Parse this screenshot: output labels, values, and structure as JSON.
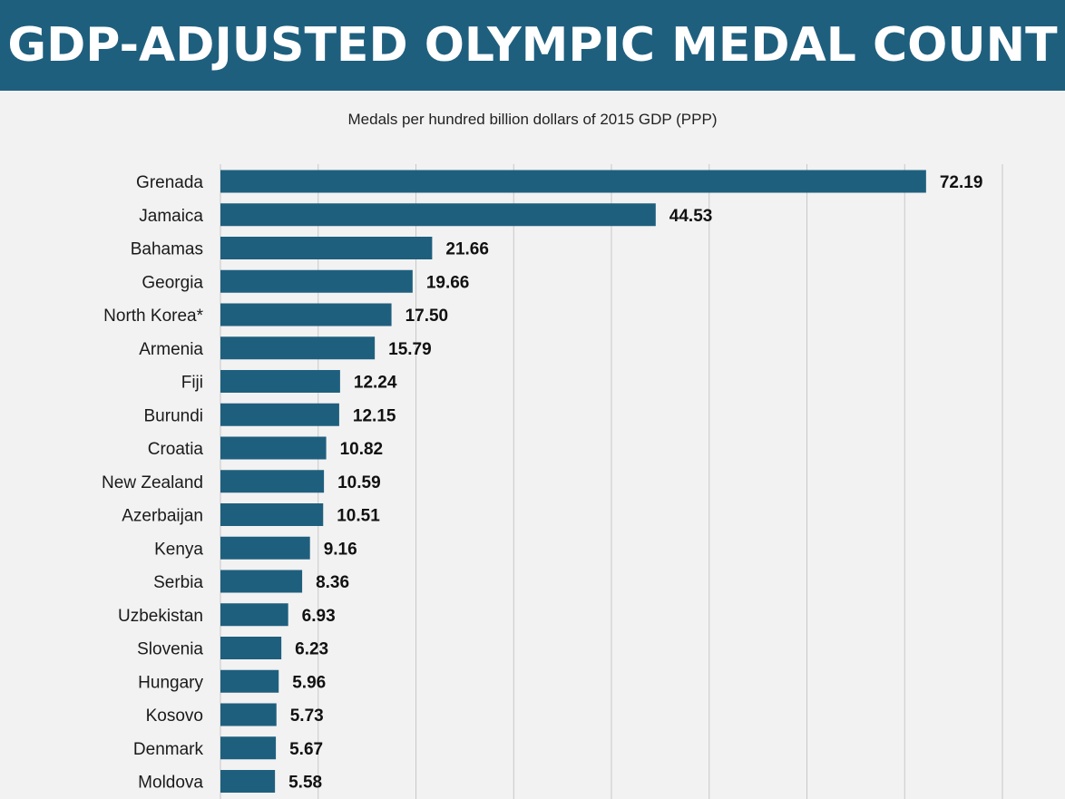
{
  "header": {
    "title": "GDP-ADJUSTED OLYMPIC MEDAL COUNT",
    "banner_color": "#1f5f7e"
  },
  "chart_data": {
    "type": "bar",
    "orientation": "horizontal",
    "title": "Medals per hundred billion dollars of 2015 GDP (PPP)",
    "xlabel": "",
    "ylabel": "",
    "xlim": [
      0,
      80
    ],
    "grid": true,
    "bar_color": "#1f5f7e",
    "categories": [
      "Grenada",
      "Jamaica",
      "Bahamas",
      "Georgia",
      "North Korea*",
      "Armenia",
      "Fiji",
      "Burundi",
      "Croatia",
      "New Zealand",
      "Azerbaijan",
      "Kenya",
      "Serbia",
      "Uzbekistan",
      "Slovenia",
      "Hungary",
      "Kosovo",
      "Denmark",
      "Moldova"
    ],
    "values": [
      72.19,
      44.53,
      21.66,
      19.66,
      17.5,
      15.79,
      12.24,
      12.15,
      10.82,
      10.59,
      10.51,
      9.16,
      8.36,
      6.93,
      6.23,
      5.96,
      5.73,
      5.67,
      5.58
    ],
    "value_labels": [
      "72.19",
      "44.53",
      "21.66",
      "19.66",
      "17.50",
      "15.79",
      "12.24",
      "12.15",
      "10.82",
      "10.59",
      "10.51",
      "9.16",
      "8.36",
      "6.93",
      "6.23",
      "5.96",
      "5.73",
      "5.67",
      "5.58"
    ]
  }
}
